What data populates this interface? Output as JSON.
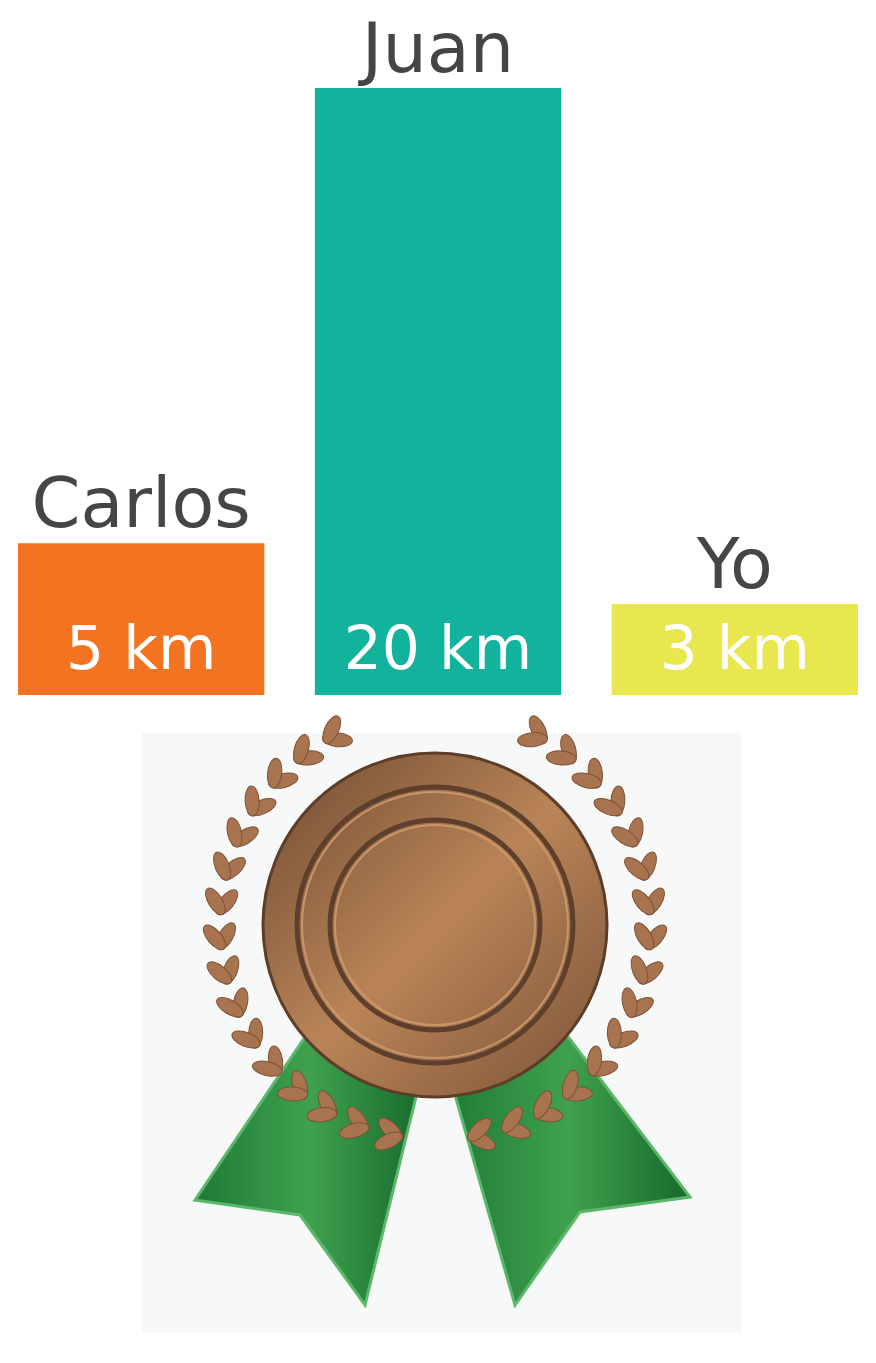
{
  "chart_data": {
    "type": "bar",
    "categories": [
      "Carlos",
      "Juan",
      "Yo"
    ],
    "values": [
      5,
      20,
      3
    ],
    "value_labels": [
      "5 km",
      "20 km",
      "3 km"
    ],
    "colors": [
      "#f37321",
      "#12b39c",
      "#e8e84e"
    ],
    "ylim": [
      0,
      20
    ],
    "data_labels": true,
    "tick_labels": false
  }
}
